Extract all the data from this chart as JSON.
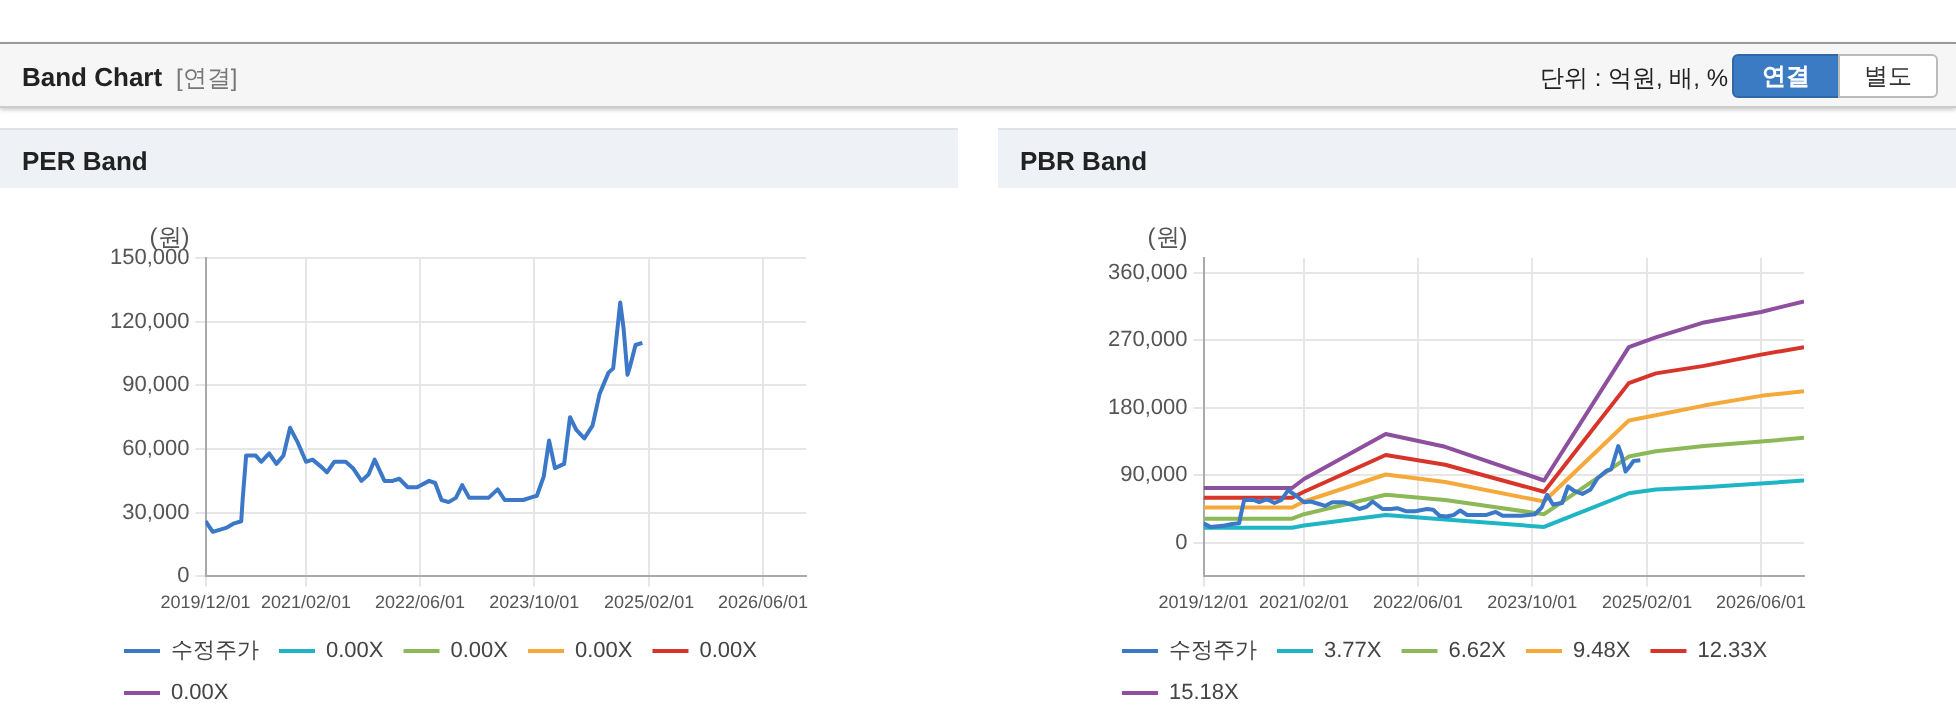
{
  "chart_data": [
    {
      "type": "other",
      "title": "Band Chart",
      "annotations": [
        "[연결]",
        "단위 : 억원, 배, %",
        "연결",
        "별도"
      ]
    },
    {
      "type": "line",
      "title": "PER Band",
      "ylabel": "(원)",
      "grid": true,
      "legend": "bottom",
      "xlim": [
        "2019-12-01",
        "2026-12-01"
      ],
      "xticks": [
        {
          "value": "2019-12-01",
          "label": "2019/12/01"
        },
        {
          "value": "2021-02-01",
          "label": "2021/02/01"
        },
        {
          "value": "2022-06-01",
          "label": "2022/06/01"
        },
        {
          "value": "2023-10-01",
          "label": "2023/10/01"
        },
        {
          "value": "2025-02-01",
          "label": "2025/02/01"
        },
        {
          "value": "2026-06-01",
          "label": "2026/06/01"
        }
      ],
      "ylim": [
        0,
        150000
      ],
      "yticks": [
        0,
        {
          "value": 30000,
          "label": "30,000"
        },
        {
          "value": 60000,
          "label": "60,000"
        },
        {
          "value": 90000,
          "label": "90,000"
        },
        {
          "value": 120000,
          "label": "120,000"
        },
        {
          "value": 150000,
          "label": "150,000"
        }
      ],
      "series": [
        {
          "name": "수정주가",
          "color": "#3b78c8",
          "x": [
            "2019-12-01",
            "2020-01-01",
            "2020-03-01",
            "2020-04-01",
            "2020-05-01",
            "2020-05-07",
            "2020-05-22",
            "2020-07-01",
            "2020-07-25",
            "2020-08-28",
            "2020-09-28",
            "2020-10-28",
            "2020-11-25",
            "2020-12-28",
            "2021-02-01",
            "2021-03-01",
            "2021-04-13",
            "2021-05-01",
            "2021-06-01",
            "2021-07-20",
            "2021-08-20",
            "2021-09-25",
            "2021-10-25",
            "2021-11-20",
            "2022-01-01",
            "2022-02-05",
            "2022-03-05",
            "2022-04-10",
            "2022-05-20",
            "2022-07-10",
            "2022-08-05",
            "2022-09-01",
            "2022-10-01",
            "2022-11-01",
            "2022-11-28",
            "2022-12-28",
            "2023-03-20",
            "2023-04-28",
            "2023-05-28",
            "2023-08-15",
            "2023-09-12",
            "2023-10-12",
            "2023-11-10",
            "2023-12-03",
            "2023-12-28",
            "2024-02-05",
            "2024-03-01",
            "2024-03-28",
            "2024-05-01",
            "2024-06-05",
            "2024-07-05",
            "2024-08-12",
            "2024-09-01",
            "2024-10-01",
            "2024-10-15",
            "2024-11-01",
            "2024-11-12",
            "2024-12-05",
            "2025-01-03"
          ],
          "values": [
            26000,
            21000,
            23000,
            25000,
            26000,
            36000,
            57000,
            57000,
            54000,
            58000,
            53000,
            57000,
            70000,
            63000,
            54000,
            55000,
            51000,
            49000,
            54000,
            54000,
            51000,
            45000,
            48000,
            55000,
            45000,
            45000,
            46000,
            42000,
            42000,
            45000,
            44000,
            36000,
            35000,
            37000,
            43000,
            37000,
            37000,
            41000,
            36000,
            36000,
            37000,
            38000,
            47000,
            64000,
            51000,
            53000,
            75000,
            69000,
            65000,
            71000,
            86000,
            96000,
            98000,
            129000,
            117000,
            95000,
            99000,
            109000,
            110000
          ]
        },
        {
          "name": "0.00X",
          "color": "#1fb5c4"
        },
        {
          "name": "0.00X",
          "color": "#8db857"
        },
        {
          "name": "0.00X",
          "color": "#f5a93a"
        },
        {
          "name": "0.00X",
          "color": "#d8352a"
        },
        {
          "name": "0.00X",
          "color": "#8e4f9e"
        }
      ]
    },
    {
      "type": "line",
      "title": "PBR Band",
      "ylabel": "(원)",
      "grid": true,
      "legend": "bottom",
      "xlim": [
        "2019-12-01",
        "2026-12-01"
      ],
      "xticks": [
        {
          "value": "2019-12-01",
          "label": "2019/12/01"
        },
        {
          "value": "2021-02-01",
          "label": "2021/02/01"
        },
        {
          "value": "2022-06-01",
          "label": "2022/06/01"
        },
        {
          "value": "2023-10-01",
          "label": "2023/10/01"
        },
        {
          "value": "2025-02-01",
          "label": "2025/02/01"
        },
        {
          "value": "2026-06-01",
          "label": "2026/06/01"
        }
      ],
      "ylim": [
        -45000,
        380000
      ],
      "yticks": [
        0,
        {
          "value": 90000,
          "label": "90,000"
        },
        {
          "value": 180000,
          "label": "180,000"
        },
        {
          "value": 270000,
          "label": "270,000"
        },
        {
          "value": 360000,
          "label": "360,000"
        }
      ],
      "series": [
        {
          "name": "수정주가",
          "color": "#3b78c8",
          "x": [
            "2019-12-01",
            "2020-01-01",
            "2020-03-01",
            "2020-04-01",
            "2020-05-01",
            "2020-05-07",
            "2020-05-22",
            "2020-07-01",
            "2020-07-25",
            "2020-08-28",
            "2020-09-28",
            "2020-10-28",
            "2020-11-25",
            "2020-12-28",
            "2021-02-01",
            "2021-03-01",
            "2021-04-13",
            "2021-05-01",
            "2021-06-01",
            "2021-07-20",
            "2021-08-20",
            "2021-09-25",
            "2021-10-25",
            "2021-11-20",
            "2022-01-01",
            "2022-02-05",
            "2022-03-05",
            "2022-04-10",
            "2022-05-20",
            "2022-07-10",
            "2022-08-05",
            "2022-09-01",
            "2022-10-01",
            "2022-11-01",
            "2022-11-28",
            "2022-12-28",
            "2023-03-20",
            "2023-04-28",
            "2023-05-28",
            "2023-08-15",
            "2023-09-12",
            "2023-10-12",
            "2023-11-10",
            "2023-12-03",
            "2023-12-28",
            "2024-02-05",
            "2024-03-01",
            "2024-03-28",
            "2024-05-01",
            "2024-06-05",
            "2024-07-05",
            "2024-08-12",
            "2024-09-01",
            "2024-10-01",
            "2024-10-15",
            "2024-11-01",
            "2024-11-12",
            "2024-12-05",
            "2025-01-03"
          ],
          "values": [
            26000,
            21000,
            23000,
            25000,
            26000,
            36000,
            57000,
            57000,
            54000,
            58000,
            53000,
            57000,
            70000,
            63000,
            54000,
            55000,
            51000,
            49000,
            54000,
            54000,
            51000,
            45000,
            48000,
            55000,
            45000,
            45000,
            46000,
            42000,
            42000,
            45000,
            44000,
            36000,
            35000,
            37000,
            43000,
            37000,
            37000,
            41000,
            36000,
            36000,
            37000,
            38000,
            47000,
            64000,
            51000,
            53000,
            75000,
            69000,
            65000,
            71000,
            86000,
            96000,
            98000,
            129000,
            117000,
            95000,
            99000,
            109000,
            110000
          ]
        },
        {
          "name": "3.77X",
          "color": "#1fb5c4",
          "x": [
            "2019-12-01",
            "2020-12-12",
            "2021-02-01",
            "2022-01-15",
            "2022-09-25",
            "2023-11-20",
            "2024-11-15",
            "2025-03-10",
            "2025-10-01",
            "2026-06-01",
            "2026-12-01"
          ],
          "values": [
            20000,
            20000,
            23000,
            37000,
            31000,
            21000,
            66000,
            71000,
            74000,
            79000,
            83000
          ]
        },
        {
          "name": "6.62X",
          "color": "#8db857",
          "x": [
            "2019-12-01",
            "2020-12-12",
            "2021-02-01",
            "2022-01-15",
            "2022-09-25",
            "2023-11-20",
            "2024-11-15",
            "2025-03-10",
            "2025-10-01",
            "2026-06-01",
            "2026-12-01"
          ],
          "values": [
            32000,
            32000,
            38000,
            64000,
            57000,
            38000,
            115000,
            122000,
            129000,
            135000,
            140000
          ]
        },
        {
          "name": "9.48X",
          "color": "#f5a93a",
          "x": [
            "2019-12-01",
            "2020-12-12",
            "2021-02-01",
            "2022-01-15",
            "2022-09-25",
            "2023-11-20",
            "2024-11-15",
            "2025-03-10",
            "2025-10-01",
            "2026-06-01",
            "2026-12-01"
          ],
          "values": [
            47000,
            47000,
            55000,
            91000,
            81000,
            55000,
            163000,
            170000,
            183000,
            196000,
            202000
          ]
        },
        {
          "name": "12.33X",
          "color": "#d8352a",
          "x": [
            "2019-12-01",
            "2020-12-12",
            "2021-02-01",
            "2022-01-15",
            "2022-09-25",
            "2023-11-20",
            "2024-11-15",
            "2025-03-10",
            "2025-10-01",
            "2026-06-01",
            "2026-12-01"
          ],
          "values": [
            60000,
            60000,
            68000,
            117000,
            104000,
            68000,
            213000,
            226000,
            236000,
            251000,
            261000
          ]
        },
        {
          "name": "15.18X",
          "color": "#8e4f9e",
          "x": [
            "2019-12-01",
            "2020-12-12",
            "2021-02-01",
            "2022-01-15",
            "2022-09-25",
            "2023-11-20",
            "2024-11-15",
            "2025-03-10",
            "2025-10-01",
            "2026-06-01",
            "2026-12-01"
          ],
          "values": [
            73000,
            73000,
            85000,
            145000,
            128000,
            83000,
            261000,
            274000,
            294000,
            308000,
            322000
          ]
        }
      ]
    }
  ]
}
